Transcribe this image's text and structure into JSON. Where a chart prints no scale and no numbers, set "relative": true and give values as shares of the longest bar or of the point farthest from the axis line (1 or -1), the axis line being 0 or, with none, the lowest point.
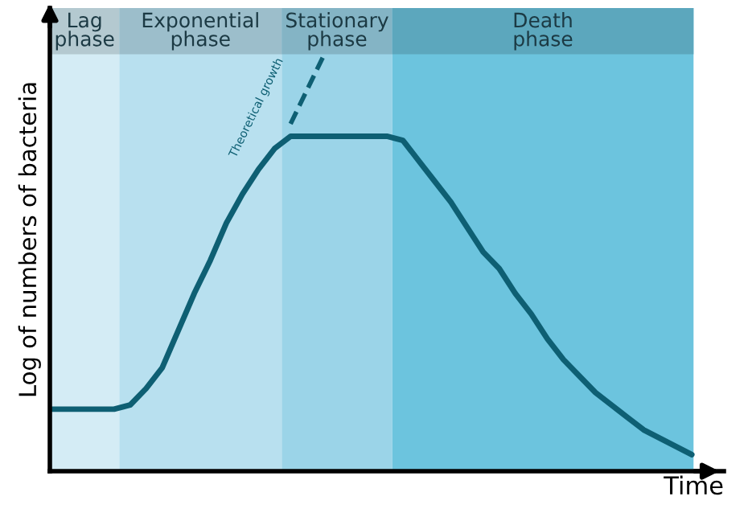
{
  "chart_data": {
    "type": "line",
    "relative": true,
    "xlabel": "Time",
    "ylabel": "Log of numbers of bacteria",
    "categories": [
      null,
      null,
      null,
      null,
      null,
      null,
      null,
      null,
      null,
      null,
      null,
      null,
      null,
      null,
      null,
      null,
      null,
      null,
      null,
      null,
      null,
      null,
      null,
      null,
      null,
      null,
      null,
      null,
      null,
      null,
      null,
      null,
      null,
      null,
      null,
      null,
      null,
      null,
      null,
      null,
      null
    ],
    "series": [
      {
        "color": "#0e5f73",
        "line_style": "solid",
        "values": [
          0.15,
          0.15,
          0.15,
          0.15,
          0.15,
          0.16,
          0.2,
          0.25,
          0.34,
          0.43,
          0.51,
          0.6,
          0.67,
          0.73,
          0.78,
          0.81,
          0.81,
          0.81,
          0.81,
          0.81,
          0.81,
          0.81,
          0.8,
          0.75,
          0.7,
          0.65,
          0.59,
          0.53,
          0.49,
          0.43,
          0.38,
          0.32,
          0.27,
          0.23,
          0.19,
          0.16,
          0.13,
          0.1,
          0.08,
          0.06,
          0.04
        ]
      },
      {
        "name": "Theoretical growth",
        "color": "#0e5f73",
        "line_style": "dashed",
        "values": [
          null,
          null,
          null,
          null,
          null,
          null,
          null,
          null,
          null,
          null,
          null,
          null,
          null,
          null,
          null,
          0.84,
          null,
          1,
          null,
          null,
          null,
          null,
          null,
          null,
          null,
          null,
          null,
          null,
          null,
          null,
          null,
          null,
          null,
          null,
          null,
          null,
          null,
          null,
          null,
          null,
          null
        ]
      }
    ],
    "annotations": [
      "Lag\nphase",
      "Exponential\nphase",
      "Stationary\nphase",
      "Death\nphase"
    ],
    "grid": false,
    "legend": false,
    "marker": "none",
    "tick_labels": false
  }
}
